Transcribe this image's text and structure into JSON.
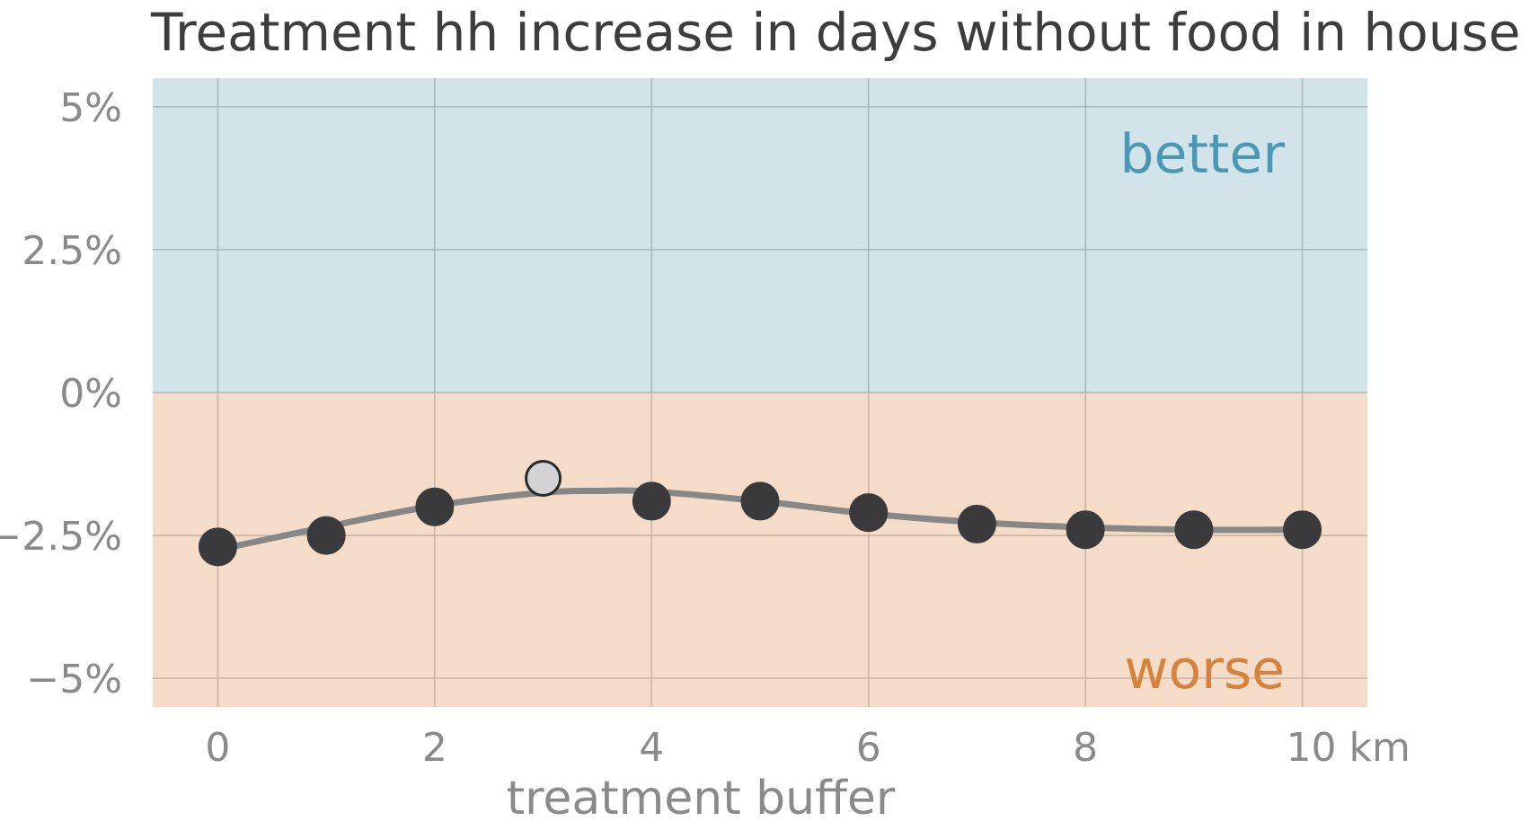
{
  "chart_data": {
    "type": "line",
    "title": "Treatment hh increase in days without food in house",
    "xlabel": "treatment buffer",
    "ylabel": "",
    "x_ticks": [
      {
        "value": 0,
        "label": "0"
      },
      {
        "value": 2,
        "label": "2"
      },
      {
        "value": 4,
        "label": "4"
      },
      {
        "value": 6,
        "label": "6"
      },
      {
        "value": 8,
        "label": "8"
      },
      {
        "value": 10,
        "label": "10 km"
      }
    ],
    "y_ticks": [
      {
        "value": 5,
        "label": "5%"
      },
      {
        "value": 2.5,
        "label": "2.5%"
      },
      {
        "value": 0,
        "label": "0%"
      },
      {
        "value": -2.5,
        "label": "−2.5%"
      },
      {
        "value": -5,
        "label": "−5%"
      }
    ],
    "xlim": [
      -0.6,
      10.6
    ],
    "ylim": [
      -5.5,
      5.5
    ],
    "grid": true,
    "regions": [
      {
        "label": "better",
        "from": 0,
        "to": 5.5,
        "fill": "#d2e4ea",
        "text_color": "#4a98b4"
      },
      {
        "label": "worse",
        "from": -5.5,
        "to": 0,
        "fill": "#f5dcc8",
        "text_color": "#d4823e"
      }
    ],
    "series": [
      {
        "x": [
          0,
          1,
          2,
          3,
          4,
          5,
          6,
          7,
          8,
          9,
          10
        ],
        "y": [
          -2.7,
          -2.5,
          -2.0,
          -1.5,
          -1.9,
          -1.9,
          -2.1,
          -2.3,
          -2.4,
          -2.4,
          -2.4
        ],
        "highlight_index": 3,
        "point_color": "#3a3a3c",
        "highlight_color": "#d3d3d5"
      }
    ],
    "smooth_curve": {
      "x": [
        0,
        1,
        2,
        3,
        3.5,
        4,
        5,
        6,
        7,
        8,
        9,
        10
      ],
      "y": [
        -2.75,
        -2.35,
        -1.98,
        -1.75,
        -1.72,
        -1.73,
        -1.9,
        -2.12,
        -2.27,
        -2.36,
        -2.4,
        -2.4
      ],
      "color": "#878787"
    }
  }
}
